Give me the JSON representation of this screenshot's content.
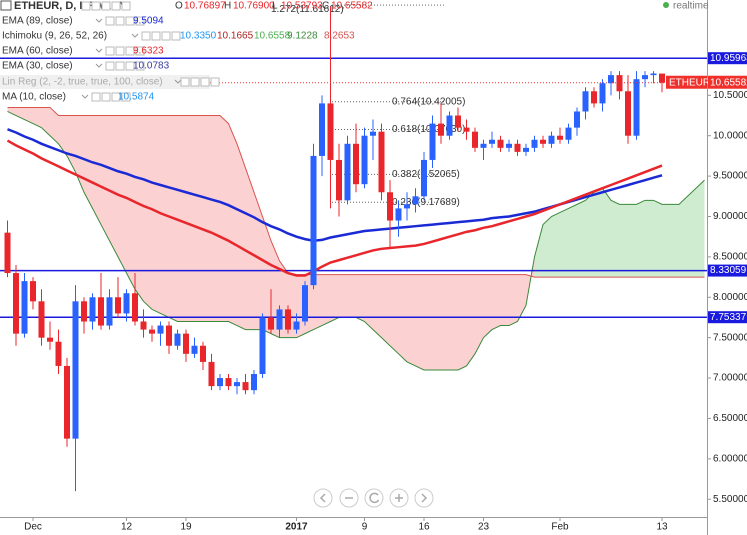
{
  "chart_data": {
    "type": "candlestick",
    "title": "ETHEUR, D, KRAKEN",
    "ohlc_readout": [
      {
        "label": "O",
        "value": "10.76897"
      },
      {
        "label": "H",
        "value": "10.76900"
      },
      {
        "label": "L",
        "value": "10.53793"
      },
      {
        "label": "C",
        "value": "10.65582"
      }
    ],
    "status": "realtime",
    "indicators": [
      {
        "name": "EMA (89, close)",
        "readout": [
          "9.5094"
        ],
        "colors": [
          "#1a2ad4"
        ],
        "line_color": "#1a2ad4",
        "values": [
          10.08,
          10.04,
          9.99,
          9.95,
          9.9,
          9.86,
          9.82,
          9.78,
          9.75,
          9.71,
          9.67,
          9.64,
          9.6,
          9.56,
          9.53,
          9.49,
          9.46,
          9.42,
          9.39,
          9.36,
          9.33,
          9.3,
          9.27,
          9.24,
          9.21,
          9.18,
          9.14,
          9.09,
          9.04,
          8.99,
          8.93,
          8.88,
          8.84,
          8.79,
          8.75,
          8.72,
          8.7,
          8.71,
          8.74,
          8.76,
          8.78,
          8.8,
          8.82,
          8.83,
          8.84,
          8.85,
          8.86,
          8.87,
          8.88,
          8.89,
          8.9,
          8.91,
          8.92,
          8.93,
          8.94,
          8.95,
          8.96,
          8.98,
          8.99,
          9.0,
          9.02,
          9.04,
          9.06,
          9.09,
          9.12,
          9.15,
          9.18,
          9.21,
          9.24,
          9.27,
          9.3,
          9.33,
          9.36,
          9.39,
          9.42,
          9.45,
          9.48,
          9.51,
          null,
          null,
          null,
          null,
          null
        ]
      },
      {
        "name": "Ichimoku (9, 26, 52, 26)",
        "readout": [
          "10.3350",
          "10.1665",
          "10.6558",
          "9.1228",
          "8.2653"
        ],
        "colors": [
          "#2196f3",
          "#b22222",
          "#4caf50",
          "#3a8a3a",
          "#d9534f"
        ],
        "span_a": [
          10.3,
          10.25,
          10.2,
          10.15,
          10.1,
          10.0,
          9.9,
          9.75,
          9.55,
          9.3,
          9.1,
          8.9,
          8.7,
          8.5,
          8.3,
          8.1,
          7.95,
          7.85,
          7.8,
          7.75,
          7.7,
          7.7,
          7.7,
          7.7,
          7.7,
          7.7,
          7.7,
          7.65,
          7.6,
          7.6,
          7.6,
          7.55,
          7.5,
          7.5,
          7.5,
          7.55,
          7.6,
          7.65,
          7.7,
          7.75,
          7.75,
          7.75,
          7.7,
          7.6,
          7.5,
          7.4,
          7.3,
          7.2,
          7.15,
          7.1,
          7.1,
          7.1,
          7.1,
          7.1,
          7.15,
          7.3,
          7.5,
          7.6,
          7.65,
          7.65,
          7.7,
          7.9,
          8.5,
          8.9,
          9.0,
          9.05,
          9.1,
          9.15,
          9.2,
          9.3,
          9.35,
          9.2,
          9.15,
          9.15,
          9.15,
          9.2,
          9.2,
          9.15,
          9.15,
          9.15,
          9.25,
          9.35,
          9.45
        ],
        "span_b": [
          10.35,
          10.35,
          10.35,
          10.35,
          10.35,
          10.35,
          10.25,
          10.25,
          10.25,
          10.25,
          10.25,
          10.25,
          10.25,
          10.25,
          10.25,
          10.25,
          10.25,
          10.25,
          10.25,
          10.25,
          10.25,
          10.25,
          10.25,
          10.25,
          10.25,
          10.25,
          10.15,
          9.9,
          9.6,
          9.3,
          9.0,
          8.7,
          8.45,
          8.3,
          8.28,
          8.28,
          8.28,
          8.28,
          8.28,
          8.28,
          8.28,
          8.28,
          8.28,
          8.28,
          8.28,
          8.28,
          8.28,
          8.28,
          8.28,
          8.28,
          8.28,
          8.28,
          8.28,
          8.28,
          8.28,
          8.28,
          8.28,
          8.28,
          8.28,
          8.28,
          8.28,
          8.28,
          8.25,
          8.25,
          8.25,
          8.25,
          8.25,
          8.25,
          8.25,
          8.25,
          8.25,
          8.25,
          8.25,
          8.25,
          8.25,
          8.25,
          8.25,
          8.25,
          8.25,
          8.25,
          8.25,
          8.25,
          8.25
        ]
      },
      {
        "name": "EMA (60, close)",
        "readout": [
          "9.6323"
        ],
        "colors": [
          "#e8262b"
        ],
        "line_color": "#e8262b",
        "values": [
          9.94,
          9.88,
          9.83,
          9.78,
          9.72,
          9.67,
          9.62,
          9.57,
          9.52,
          9.47,
          9.42,
          9.37,
          9.32,
          9.27,
          9.23,
          9.18,
          9.13,
          9.09,
          9.04,
          9.0,
          8.96,
          8.92,
          8.88,
          8.84,
          8.8,
          8.75,
          8.7,
          8.64,
          8.58,
          8.52,
          8.46,
          8.4,
          8.35,
          8.3,
          8.27,
          8.27,
          8.32,
          8.38,
          8.43,
          8.46,
          8.49,
          8.52,
          8.55,
          8.58,
          8.6,
          8.61,
          8.62,
          8.63,
          8.64,
          8.66,
          8.69,
          8.72,
          8.75,
          8.78,
          8.81,
          8.83,
          8.86,
          8.88,
          8.91,
          8.94,
          8.97,
          9.0,
          9.03,
          9.07,
          9.11,
          9.15,
          9.19,
          9.23,
          9.27,
          9.31,
          9.35,
          9.39,
          9.43,
          9.47,
          9.51,
          9.55,
          9.59,
          9.63,
          null,
          null,
          null,
          null,
          null
        ]
      },
      {
        "name": "EMA (30, close)",
        "readout": [
          "10.0783"
        ],
        "colors": [
          "#3a3aa0"
        ]
      },
      {
        "name": "Lin Reg (2, -2, true, true, 100, close)"
      },
      {
        "name": "MA (10, close)",
        "readout": [
          "10.5874"
        ],
        "colors": [
          "#2196f3"
        ]
      }
    ],
    "categories": [
      null,
      null,
      null,
      "Dec",
      null,
      null,
      null,
      null,
      null,
      null,
      null,
      null,
      null,
      null,
      "12",
      null,
      null,
      null,
      null,
      null,
      null,
      "19",
      null,
      null,
      null,
      null,
      null,
      null,
      null,
      null,
      null,
      null,
      null,
      null,
      "2017",
      null,
      null,
      null,
      null,
      null,
      null,
      null,
      "9",
      null,
      null,
      null,
      null,
      null,
      null,
      "16",
      null,
      null,
      null,
      null,
      null,
      null,
      "23",
      null,
      null,
      null,
      null,
      null,
      null,
      null,
      null,
      "Feb",
      null,
      null,
      null,
      null,
      null,
      null,
      null,
      null,
      null,
      null,
      null,
      "13",
      null,
      null,
      null,
      null,
      null
    ],
    "open": [
      8.8,
      8.3,
      7.55,
      8.2,
      7.95,
      7.5,
      7.45,
      7.15,
      6.25,
      7.95,
      7.7,
      8.0,
      7.65,
      8.0,
      7.8,
      8.05,
      7.7,
      7.6,
      7.55,
      7.65,
      7.4,
      7.55,
      7.3,
      7.4,
      7.2,
      6.9,
      7.0,
      6.9,
      6.95,
      6.85,
      7.05,
      7.75,
      7.6,
      7.85,
      7.6,
      7.7,
      8.15,
      9.75,
      10.4,
      9.7,
      9.2,
      9.9,
      9.4,
      10.0,
      10.05,
      9.3,
      8.95,
      9.1,
      9.15,
      9.25,
      9.7,
      10.15,
      10.0,
      10.25,
      10.1,
      10.05,
      9.85,
      9.9,
      9.95,
      9.85,
      9.9,
      9.8,
      9.85,
      9.95,
      9.9,
      10.0,
      9.95,
      10.1,
      10.3,
      10.55,
      10.4,
      10.65,
      10.75,
      10.55,
      10.0,
      10.7,
      10.75,
      10.76897,
      null,
      null,
      null,
      null,
      null
    ],
    "high": [
      8.95,
      8.4,
      8.3,
      8.25,
      8.1,
      7.7,
      7.6,
      7.25,
      8.15,
      8.0,
      8.05,
      8.3,
      8.1,
      8.25,
      8.1,
      8.3,
      7.85,
      7.65,
      7.7,
      7.7,
      7.6,
      7.6,
      7.5,
      7.45,
      7.3,
      7.05,
      7.05,
      7.0,
      7.05,
      7.1,
      7.8,
      8.1,
      7.9,
      7.9,
      7.8,
      8.2,
      9.9,
      10.5,
      11.6,
      9.9,
      10.0,
      10.15,
      10.1,
      10.2,
      10.15,
      9.45,
      9.2,
      9.3,
      9.35,
      9.8,
      10.25,
      10.4,
      10.3,
      10.35,
      10.2,
      10.1,
      9.95,
      10.05,
      10.0,
      9.95,
      9.95,
      9.9,
      10.0,
      10.0,
      10.05,
      10.1,
      10.15,
      10.35,
      10.6,
      10.6,
      10.7,
      10.8,
      10.8,
      10.75,
      10.8,
      10.8,
      10.8,
      10.769,
      null,
      null,
      null,
      null,
      null
    ],
    "low": [
      8.25,
      7.4,
      7.5,
      7.85,
      7.4,
      7.35,
      7.05,
      6.15,
      5.6,
      7.55,
      7.6,
      7.6,
      7.6,
      7.75,
      7.7,
      7.65,
      7.5,
      7.45,
      7.4,
      7.3,
      7.35,
      7.2,
      7.25,
      7.1,
      6.85,
      6.85,
      6.85,
      6.8,
      6.8,
      6.8,
      7.0,
      7.55,
      7.5,
      7.55,
      7.55,
      7.65,
      8.1,
      9.5,
      9.1,
      9.0,
      9.15,
      9.3,
      9.35,
      9.7,
      9.2,
      8.6,
      8.75,
      8.95,
      9.05,
      9.2,
      9.6,
      9.9,
      9.95,
      10.05,
      9.95,
      9.8,
      9.7,
      9.85,
      9.8,
      9.8,
      9.75,
      9.75,
      9.8,
      9.85,
      9.85,
      9.9,
      9.9,
      10.0,
      10.2,
      10.35,
      10.3,
      10.5,
      10.45,
      9.9,
      9.95,
      10.6,
      10.65,
      10.53793,
      null,
      null,
      null,
      null,
      null
    ],
    "close": [
      8.3,
      7.55,
      8.2,
      7.95,
      7.5,
      7.45,
      7.15,
      6.25,
      7.95,
      7.7,
      8.0,
      7.65,
      8.0,
      7.8,
      8.05,
      7.7,
      7.6,
      7.55,
      7.65,
      7.4,
      7.55,
      7.3,
      7.4,
      7.2,
      6.9,
      7.0,
      6.9,
      6.95,
      6.85,
      7.05,
      7.75,
      7.6,
      7.85,
      7.6,
      7.7,
      8.15,
      9.75,
      10.4,
      9.7,
      9.2,
      9.9,
      9.4,
      10.0,
      10.05,
      9.3,
      8.95,
      9.1,
      9.15,
      9.25,
      9.7,
      10.15,
      10.0,
      10.25,
      10.1,
      10.05,
      9.85,
      9.9,
      9.95,
      9.85,
      9.9,
      9.8,
      9.85,
      9.95,
      9.9,
      10.0,
      9.95,
      10.1,
      10.3,
      10.55,
      10.4,
      10.65,
      10.75,
      10.55,
      10.0,
      10.7,
      10.75,
      10.77,
      10.65582,
      null,
      null,
      null,
      null,
      null
    ],
    "up_color": "#2962ff",
    "down_color": "#e8262b",
    "ylim": [
      5.28,
      11.68
    ],
    "yticks": [
      {
        "value": 5.5,
        "label": "5.50000"
      },
      {
        "value": 6,
        "label": "6.00000"
      },
      {
        "value": 6.5,
        "label": "6.50000"
      },
      {
        "value": 7,
        "label": "7.00000"
      },
      {
        "value": 7.5,
        "label": "7.50000"
      },
      {
        "value": 8,
        "label": "8.00000"
      },
      {
        "value": 8.5,
        "label": "8.50000"
      },
      {
        "value": 9,
        "label": "9.00000"
      },
      {
        "value": 9.5,
        "label": "9.50000"
      },
      {
        "value": 10,
        "label": "10.00000"
      },
      {
        "value": 10.5,
        "label": "10.50000"
      }
    ],
    "hlines": [
      10.95963,
      8.33059,
      7.75337
    ],
    "hline_color": "#1a1adf",
    "fib": [
      {
        "label": "1.272(11.61612)",
        "value": 11.61612
      },
      {
        "label": "0.764(10.42005)",
        "value": 10.42005
      },
      {
        "label": "0.618(10.07630)",
        "value": 10.0763
      },
      {
        "label": "0.382(9.52065)",
        "value": 9.52065
      },
      {
        "label": "0.236(9.17689)",
        "value": 9.17689
      }
    ],
    "last_symbol": "ETHEUR",
    "last_price": 10.65582,
    "last_color": "#f0312b"
  }
}
